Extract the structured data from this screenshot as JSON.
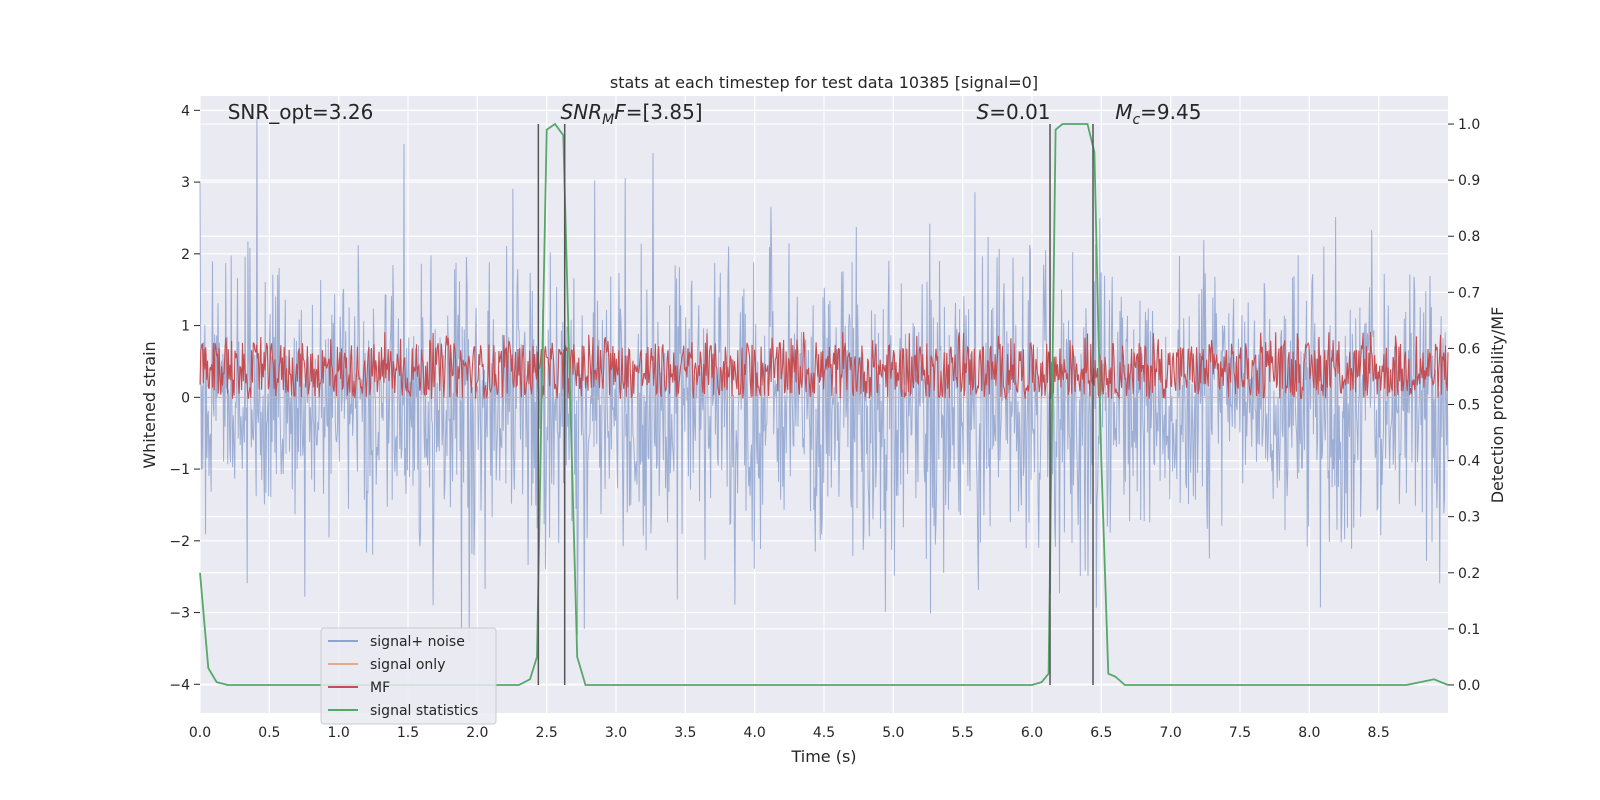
{
  "chart_data": {
    "type": "line",
    "title": "stats at each timestep for test data 10385 [signal=0]",
    "xlabel": "Time (s)",
    "ylabel": "Whitened strain",
    "y2label": "Detection probability/MF",
    "xlim": [
      0.0,
      9.0
    ],
    "ylim": [
      -4.4,
      4.2
    ],
    "y2lim": [
      -0.05,
      1.05
    ],
    "xticks": [
      0.0,
      0.5,
      1.0,
      1.5,
      2.0,
      2.5,
      3.0,
      3.5,
      4.0,
      4.5,
      5.0,
      5.5,
      6.0,
      6.5,
      7.0,
      7.5,
      8.0,
      8.5
    ],
    "yticks": [
      -4,
      -3,
      -2,
      -1,
      0,
      1,
      2,
      3,
      4
    ],
    "y2ticks": [
      0.0,
      0.1,
      0.2,
      0.3,
      0.4,
      0.5,
      0.6,
      0.7,
      0.8,
      0.9,
      1.0
    ],
    "grid": true,
    "legend_position": "lower-left",
    "annotations": [
      {
        "text": "SNR_opt=3.26",
        "x": 0.2
      },
      {
        "text": "SNR",
        "sub": "M",
        "after": "F=[3.85]",
        "italic": true,
        "x": 2.6
      },
      {
        "text": "S",
        "after": "=0.01",
        "italic": true,
        "x": 5.6
      },
      {
        "text": "M",
        "sub": "c",
        "after": "=9.45",
        "italic": true,
        "x": 6.6
      }
    ],
    "vlines": [
      2.44,
      2.63,
      6.13,
      6.44
    ],
    "series": [
      {
        "name": "signal+ noise",
        "color": "#8fa3cf",
        "axis": "left",
        "kind": "noise",
        "envelope": {
          "center": -0.1,
          "typical": 1.4,
          "max_pos": 3.9,
          "max_neg": -4.0
        }
      },
      {
        "name": "signal only",
        "color": "#e8a88a",
        "axis": "left",
        "kind": "flat",
        "value": 0.0
      },
      {
        "name": "MF",
        "color": "#c44e52",
        "axis": "right",
        "kind": "noise",
        "envelope": {
          "low": 0.51,
          "high": 0.61,
          "peak": 0.63
        }
      },
      {
        "name": "signal statistics",
        "color": "#55a868",
        "axis": "right",
        "kind": "line",
        "x": [
          0.0,
          0.06,
          0.12,
          0.2,
          0.3,
          0.5,
          0.8,
          1.5,
          2.0,
          2.3,
          2.38,
          2.43,
          2.47,
          2.5,
          2.56,
          2.62,
          2.66,
          2.72,
          2.78,
          2.85,
          3.5,
          4.5,
          5.5,
          6.0,
          6.07,
          6.12,
          6.17,
          6.22,
          6.28,
          6.4,
          6.45,
          6.5,
          6.55,
          6.6,
          6.67,
          6.75,
          7.0,
          8.0,
          8.7,
          8.9,
          9.0
        ],
        "y": [
          0.2,
          0.03,
          0.005,
          0.0,
          0.0,
          0.0,
          0.0,
          0.0,
          0.0,
          0.0,
          0.01,
          0.05,
          0.6,
          0.99,
          1.0,
          0.98,
          0.6,
          0.05,
          0.0,
          0.0,
          0.0,
          0.0,
          0.0,
          0.0,
          0.005,
          0.02,
          0.99,
          1.0,
          1.0,
          1.0,
          0.95,
          0.4,
          0.02,
          0.015,
          0.0,
          0.0,
          0.0,
          0.0,
          0.0,
          0.01,
          0.0
        ]
      }
    ]
  }
}
